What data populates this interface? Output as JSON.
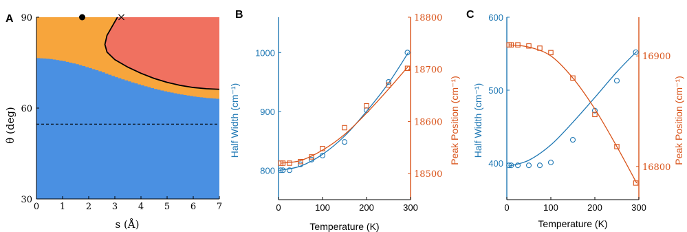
{
  "colors": {
    "blue": "#1f78b4",
    "blue_fill": "#4a90e2",
    "orange_fill": "#f7a53c",
    "red_fill": "#f07160",
    "orange_axis": "#d95319",
    "black": "#000000"
  },
  "panels": {
    "a": {
      "letter": "A",
      "ylabel": "θ (deg)",
      "xlabel": "s (Å)"
    },
    "b": {
      "letter": "B",
      "ylabel_left": "Half Width (cm⁻¹)",
      "ylabel_right": "Peak Position (cm⁻¹)",
      "xlabel": "Temperature (K)"
    },
    "c": {
      "letter": "C",
      "ylabel_left": "Half Width (cm⁻¹)",
      "ylabel_right": "Peak Position (cm⁻¹)",
      "xlabel": "Temperature (K)"
    }
  },
  "chart_data": [
    {
      "panel": "A",
      "type": "heatmap",
      "xlabel": "s (Å)",
      "ylabel": "θ (deg)",
      "xlim": [
        0,
        7
      ],
      "ylim": [
        30,
        90
      ],
      "xticks": [
        0,
        1,
        2,
        3,
        4,
        5,
        6,
        7
      ],
      "yticks": [
        30,
        60,
        90
      ],
      "regions": [
        {
          "name": "blue",
          "color": "#4a90e2",
          "boundary_top": [
            [
              0,
              76.5
            ],
            [
              0.5,
              76.2
            ],
            [
              1,
              75.5
            ],
            [
              1.5,
              74.5
            ],
            [
              2,
              73.2
            ],
            [
              2.5,
              71.8
            ],
            [
              3,
              70.2
            ],
            [
              3.5,
              68.8
            ],
            [
              4,
              67.5
            ],
            [
              4.5,
              66.3
            ],
            [
              5,
              65.3
            ],
            [
              5.5,
              64.5
            ],
            [
              6,
              63.8
            ],
            [
              6.5,
              63.3
            ],
            [
              7,
              63
            ]
          ]
        },
        {
          "name": "orange",
          "color": "#f7a53c"
        },
        {
          "name": "red",
          "color": "#f07160",
          "boundary": [
            [
              3.1,
              90
            ],
            [
              2.9,
              87
            ],
            [
              2.7,
              84
            ],
            [
              2.62,
              81
            ],
            [
              2.7,
              78.5
            ],
            [
              3.0,
              76
            ],
            [
              3.5,
              73.5
            ],
            [
              4,
              71.5
            ],
            [
              4.5,
              69.8
            ],
            [
              5,
              68.5
            ],
            [
              5.5,
              67.5
            ],
            [
              6,
              66.8
            ],
            [
              6.5,
              66.4
            ],
            [
              7,
              66.2
            ]
          ]
        }
      ],
      "reference_line": {
        "theta": 54.7,
        "style": "dashed"
      },
      "markers": [
        {
          "symbol": "filled-circle",
          "s": 1.75,
          "theta": 90
        },
        {
          "symbol": "cross",
          "s": 3.25,
          "theta": 90
        }
      ]
    },
    {
      "panel": "B",
      "type": "scatter",
      "xlabel": "Temperature (K)",
      "xlim": [
        0,
        300
      ],
      "xticks": [
        0,
        100,
        200,
        300
      ],
      "left_axis": {
        "label": "Half Width (cm⁻¹)",
        "ylim": [
          750,
          1060
        ],
        "ticks": [
          800,
          900,
          1000
        ],
        "color": "#1f78b4"
      },
      "right_axis": {
        "label": "Peak Position (cm⁻¹)",
        "ylim": [
          18450,
          18800
        ],
        "ticks": [
          18500,
          18600,
          18700,
          18800
        ],
        "color": "#d95319"
      },
      "series": [
        {
          "axis": "left",
          "marker": "circle",
          "x": [
            5,
            10,
            25,
            50,
            75,
            100,
            150,
            200,
            250,
            293
          ],
          "y": [
            800,
            800,
            800,
            810,
            818,
            825,
            848,
            902,
            950,
            1000
          ]
        },
        {
          "axis": "left",
          "kind": "fit",
          "x": [
            5,
            50,
            100,
            150,
            200,
            250,
            295
          ],
          "y": [
            800,
            807,
            827,
            858,
            900,
            948,
            1000
          ]
        },
        {
          "axis": "right",
          "marker": "square",
          "x": [
            5,
            10,
            25,
            50,
            75,
            100,
            150,
            200,
            250,
            293
          ],
          "y": [
            18520,
            18520,
            18520,
            18523,
            18532,
            18548,
            18588,
            18630,
            18670,
            18702
          ]
        },
        {
          "axis": "right",
          "kind": "fit",
          "x": [
            5,
            50,
            100,
            150,
            200,
            250,
            295
          ],
          "y": [
            18520,
            18525,
            18545,
            18575,
            18616,
            18662,
            18706
          ]
        }
      ]
    },
    {
      "panel": "C",
      "type": "scatter",
      "xlabel": "Temperature (K)",
      "xlim": [
        0,
        300
      ],
      "xticks": [
        0,
        100,
        200,
        300
      ],
      "left_axis": {
        "label": "Half Width (cm⁻¹)",
        "ylim": [
          350,
          600
        ],
        "ticks": [
          400,
          500,
          600
        ],
        "color": "#1f78b4"
      },
      "right_axis": {
        "label": "Peak Position (cm⁻¹)",
        "ylim": [
          16770,
          16935
        ],
        "ticks": [
          16800,
          16900
        ],
        "color": "#d95319"
      },
      "series": [
        {
          "axis": "left",
          "marker": "circle",
          "x": [
            5,
            10,
            25,
            50,
            75,
            100,
            150,
            200,
            250,
            293
          ],
          "y": [
            397,
            397,
            397,
            397,
            397,
            401,
            432,
            472,
            513,
            552
          ]
        },
        {
          "axis": "left",
          "kind": "fit",
          "x": [
            5,
            50,
            100,
            150,
            200,
            250,
            295
          ],
          "y": [
            396,
            404,
            425,
            456,
            490,
            525,
            553
          ]
        },
        {
          "axis": "right",
          "marker": "square",
          "x": [
            5,
            10,
            25,
            50,
            75,
            100,
            150,
            200,
            250,
            293
          ],
          "y": [
            16910,
            16910,
            16910,
            16909,
            16907,
            16903,
            16880,
            16847,
            16818,
            16785
          ]
        },
        {
          "axis": "right",
          "kind": "fit",
          "x": [
            5,
            50,
            100,
            150,
            200,
            250,
            295
          ],
          "y": [
            16910,
            16908,
            16900,
            16880,
            16852,
            16818,
            16785
          ]
        }
      ]
    }
  ]
}
